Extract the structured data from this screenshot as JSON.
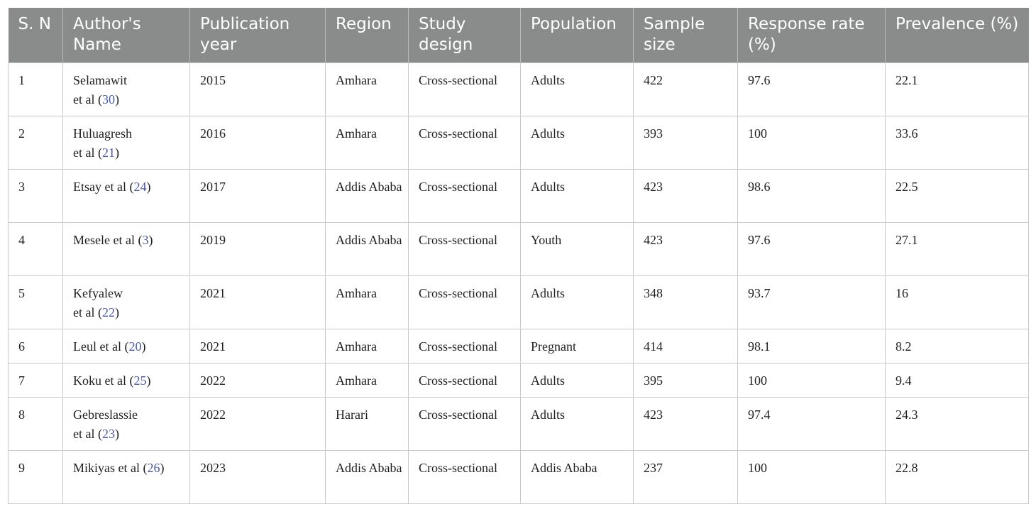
{
  "headers": [
    "S. N",
    "Author's Name",
    "Publication year",
    "Region",
    "Study design",
    "Population",
    "Sample size",
    "Response rate (%)",
    "Prevalence (%)"
  ],
  "rows": [
    {
      "sn": "1",
      "author": "Selamawit",
      "author2": "et al (",
      "ref": "30",
      "close": ")",
      "year": "2015",
      "region": "Amhara",
      "design": "Cross-sectional",
      "population": "Adults",
      "sample": "422",
      "response": "97.6",
      "prevalence": "22.1"
    },
    {
      "sn": "2",
      "author": "Huluagresh",
      "author2": "et al (",
      "ref": "21",
      "close": ")",
      "year": "2016",
      "region": "Amhara",
      "design": "Cross-sectional",
      "population": "Adults",
      "sample": "393",
      "response": "100",
      "prevalence": "33.6"
    },
    {
      "sn": "3",
      "author": "Etsay et al (",
      "author2": "",
      "ref": "24",
      "close": ")",
      "year": "2017",
      "region": "Addis Ababa",
      "design": "Cross-sectional",
      "population": "Adults",
      "sample": "423",
      "response": "98.6",
      "prevalence": "22.5"
    },
    {
      "sn": "4",
      "author": "Mesele et al (",
      "author2": "",
      "ref": "3",
      "close": ")",
      "year": "2019",
      "region": "Addis Ababa",
      "design": "Cross-sectional",
      "population": "Youth",
      "sample": "423",
      "response": "97.6",
      "prevalence": "27.1"
    },
    {
      "sn": "5",
      "author": "Kefyalew",
      "author2": "et al (",
      "ref": "22",
      "close": ")",
      "year": "2021",
      "region": "Amhara",
      "design": "Cross-sectional",
      "population": "Adults",
      "sample": "348",
      "response": "93.7",
      "prevalence": "16"
    },
    {
      "sn": "6",
      "author": "Leul et al (",
      "author2": "",
      "ref": "20",
      "close": ")",
      "year": "2021",
      "region": "Amhara",
      "design": "Cross-sectional",
      "population": "Pregnant",
      "sample": "414",
      "response": "98.1",
      "prevalence": "8.2"
    },
    {
      "sn": "7",
      "author": "Koku et al (",
      "author2": "",
      "ref": "25",
      "close": ")",
      "year": "2022",
      "region": "Amhara",
      "design": "Cross-sectional",
      "population": "Adults",
      "sample": "395",
      "response": "100",
      "prevalence": "9.4"
    },
    {
      "sn": "8",
      "author": "Gebreslassie",
      "author2": "et al (",
      "ref": "23",
      "close": ")",
      "year": "2022",
      "region": "Harari",
      "design": "Cross-sectional",
      "population": "Adults",
      "sample": "423",
      "response": "97.4",
      "prevalence": "24.3"
    },
    {
      "sn": "9",
      "author": "Mikiyas et al (",
      "author2": "",
      "ref": "26",
      "close": ")",
      "year": "2023",
      "region": "Addis Ababa",
      "design": "Cross-sectional",
      "population": "Addis Ababa",
      "sample": "237",
      "response": "100",
      "prevalence": "22.8"
    }
  ]
}
